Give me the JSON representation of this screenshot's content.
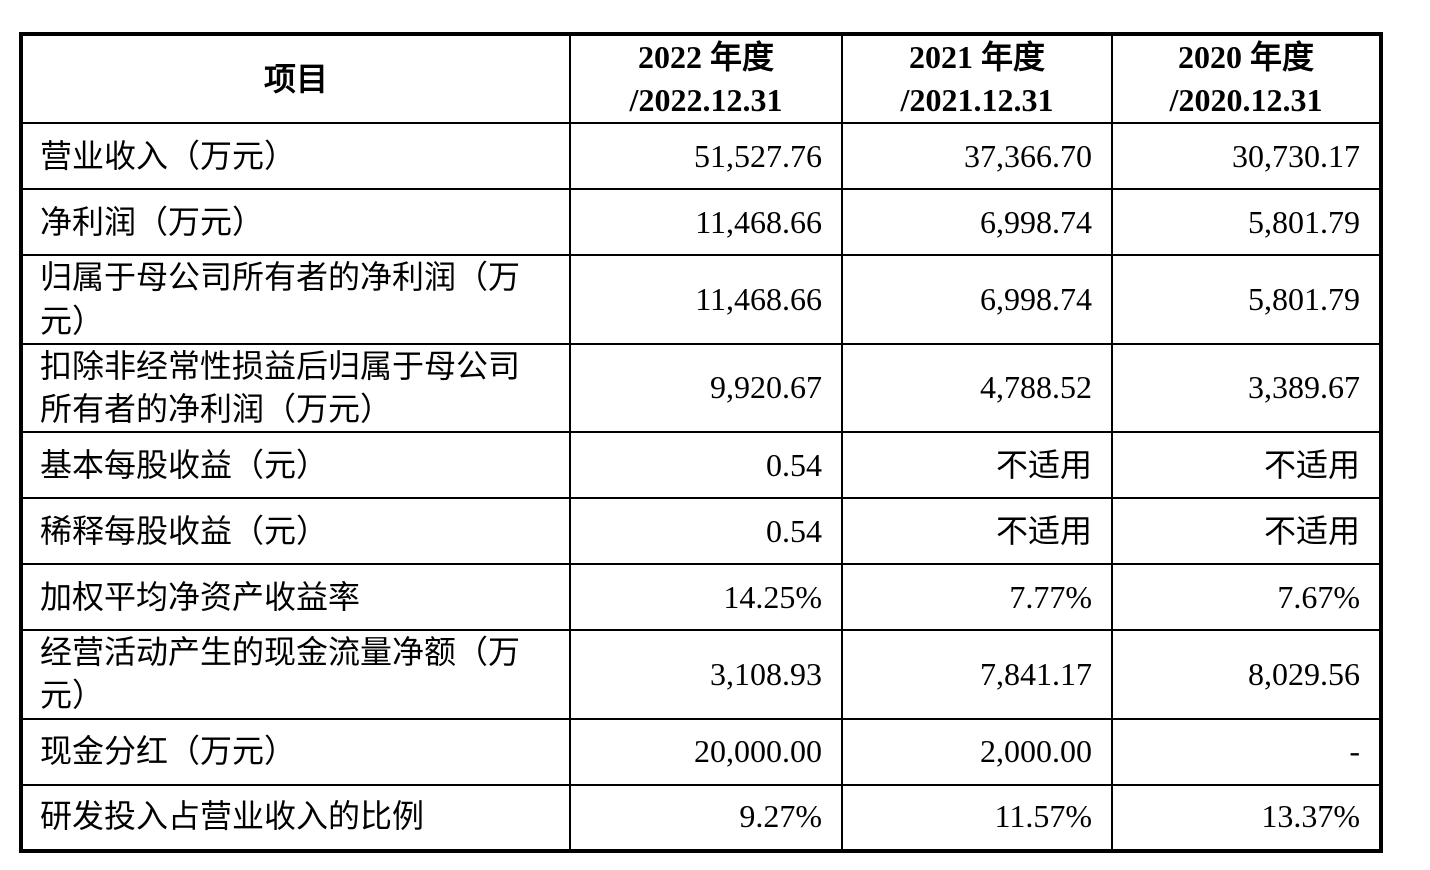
{
  "table": {
    "header": {
      "item_label": "项目",
      "periods": [
        {
          "line1": "2022 年度",
          "line2": "/2022.12.31"
        },
        {
          "line1": "2021 年度",
          "line2": "/2021.12.31"
        },
        {
          "line1": "2020 年度",
          "line2": "/2020.12.31"
        }
      ]
    },
    "rows": [
      {
        "label": "营业收入（万元）",
        "values": [
          "51,527.76",
          "37,366.70",
          "30,730.17"
        ]
      },
      {
        "label": "净利润（万元）",
        "values": [
          "11,468.66",
          "6,998.74",
          "5,801.79"
        ]
      },
      {
        "label": "归属于母公司所有者的净利润（万元）",
        "values": [
          "11,468.66",
          "6,998.74",
          "5,801.79"
        ]
      },
      {
        "label": "扣除非经常性损益后归属于母公司所有者的净利润（万元）",
        "values": [
          "9,920.67",
          "4,788.52",
          "3,389.67"
        ]
      },
      {
        "label": "基本每股收益（元）",
        "values": [
          "0.54",
          "不适用",
          "不适用"
        ]
      },
      {
        "label": "稀释每股收益（元）",
        "values": [
          "0.54",
          "不适用",
          "不适用"
        ]
      },
      {
        "label": "加权平均净资产收益率",
        "values": [
          "14.25%",
          "7.77%",
          "7.67%"
        ]
      },
      {
        "label": "经营活动产生的现金流量净额（万元）",
        "values": [
          "3,108.93",
          "7,841.17",
          "8,029.56"
        ]
      },
      {
        "label": "现金分红（万元）",
        "values": [
          "20,000.00",
          "2,000.00",
          "-"
        ]
      },
      {
        "label": "研发投入占营业收入的比例",
        "values": [
          "9.27%",
          "11.57%",
          "13.37%"
        ]
      }
    ],
    "colors": {
      "border": "#000000",
      "text": "#000000",
      "background": "#ffffff"
    }
  }
}
